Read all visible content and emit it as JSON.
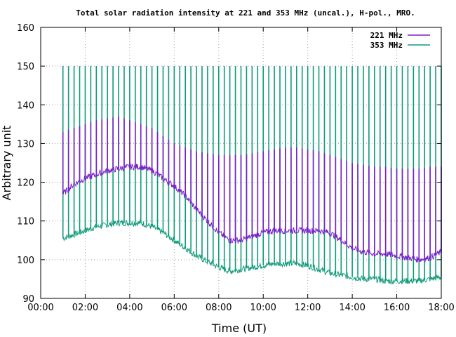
{
  "chart_data": {
    "type": "line",
    "title": "Total solar radiation intensity at 221 and 353 MHz (uncal.), H-pol., MRO.",
    "xlabel": "Time (UT)",
    "ylabel": "Arbitrary unit",
    "xlim": [
      0,
      18
    ],
    "ylim": [
      90,
      160
    ],
    "x_tick_labels": [
      "00:00",
      "02:00",
      "04:00",
      "06:00",
      "08:00",
      "10:00",
      "12:00",
      "14:00",
      "16:00",
      "18:00"
    ],
    "y_tick_labels": [
      "90",
      "100",
      "110",
      "120",
      "130",
      "140",
      "150",
      "160"
    ],
    "grid": true,
    "legend_position": "top-right",
    "calibration_spike_interval_hours": 0.25,
    "series": [
      {
        "name": "221 MHz",
        "color": "#7a1fc9",
        "x": [
          1.0,
          1.5,
          2.0,
          2.5,
          3.0,
          3.5,
          4.0,
          4.5,
          5.0,
          5.5,
          6.0,
          6.5,
          7.0,
          7.5,
          8.0,
          8.5,
          9.0,
          9.5,
          10.0,
          10.5,
          11.0,
          11.5,
          12.0,
          12.5,
          13.0,
          13.5,
          14.0,
          14.5,
          15.0,
          15.5,
          16.0,
          16.5,
          17.0,
          17.5,
          18.0
        ],
        "values": [
          117,
          119.5,
          121,
          122,
          123,
          123.5,
          124,
          124,
          123,
          121,
          119,
          116.5,
          113,
          110,
          107,
          105,
          105,
          106,
          107,
          107.5,
          107.5,
          107.5,
          107.5,
          107.5,
          107,
          105,
          103,
          102,
          101.5,
          101.5,
          101,
          100.5,
          100,
          100.5,
          102
        ],
        "spike_peaks": [
          133,
          134,
          135,
          136,
          136.5,
          137,
          136,
          135,
          134,
          132,
          130,
          129,
          128,
          127.5,
          127,
          127,
          127,
          127.5,
          128,
          128.5,
          129,
          129,
          128.5,
          128,
          127,
          126,
          125,
          124.5,
          124,
          124,
          123.5,
          123.5,
          123.5,
          124,
          124
        ]
      },
      {
        "name": "353 MHz",
        "color": "#0f9a7a",
        "x": [
          1.0,
          1.5,
          2.0,
          2.5,
          3.0,
          3.5,
          4.0,
          4.5,
          5.0,
          5.5,
          6.0,
          6.5,
          7.0,
          7.5,
          8.0,
          8.5,
          9.0,
          9.5,
          10.0,
          10.5,
          11.0,
          11.5,
          12.0,
          12.5,
          13.0,
          13.5,
          14.0,
          14.5,
          15.0,
          15.5,
          16.0,
          16.5,
          17.0,
          17.5,
          18.0
        ],
        "values": [
          105.5,
          106.5,
          107.5,
          108.5,
          109,
          109.5,
          109.5,
          109.5,
          108.5,
          107,
          105,
          103,
          101,
          99.5,
          98,
          97,
          97.5,
          98,
          98.5,
          99,
          99,
          99,
          98.5,
          97.5,
          96.5,
          96,
          95.5,
          95,
          95,
          94.5,
          94.5,
          94.5,
          94.5,
          95,
          95.5
        ],
        "spike_peaks": [
          150,
          150,
          150,
          150,
          150,
          150,
          150,
          150,
          150,
          150,
          150,
          150,
          150,
          150,
          150,
          150,
          150,
          150,
          150,
          150,
          150,
          150,
          150,
          150,
          150,
          150,
          150,
          150,
          150,
          150,
          150,
          150,
          150,
          150,
          150
        ]
      }
    ]
  }
}
